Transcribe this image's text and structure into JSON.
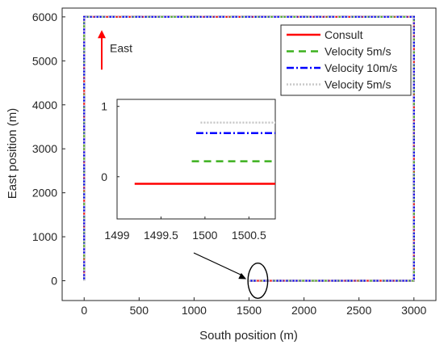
{
  "chart_data": {
    "type": "line",
    "xlabel": "South position (m)",
    "ylabel": "East position (m)",
    "xlim": [
      -200,
      3200
    ],
    "ylim": [
      -450,
      6200
    ],
    "xticks": [
      0,
      500,
      1000,
      1500,
      2000,
      2500,
      3000
    ],
    "yticks": [
      0,
      1000,
      2000,
      3000,
      4000,
      5000,
      6000
    ],
    "grid": false,
    "legend_position": "top-right",
    "series": [
      {
        "name": "Consult",
        "color": "#ff0000",
        "style": "solid",
        "x": [
          1500,
          1500,
          3000,
          3000,
          0,
          0
        ],
        "y": [
          0,
          0,
          0,
          6000,
          6000,
          0
        ]
      },
      {
        "name": "Velocity 5m/s",
        "color": "#3cb11e",
        "style": "dashed",
        "x": [
          1500,
          3000,
          3000,
          0,
          0
        ],
        "y": [
          0,
          0,
          6000,
          6000,
          0
        ]
      },
      {
        "name": "Velocity 10m/s",
        "color": "#0000ff",
        "style": "dashdot",
        "x": [
          1500,
          3000,
          3000,
          0,
          0
        ],
        "y": [
          0,
          0,
          6000,
          6000,
          0
        ]
      },
      {
        "name": "Velocity 5m/s",
        "color": "#c8c8c8",
        "style": "dotted",
        "x": [
          1500,
          3000,
          3000,
          0,
          0
        ],
        "y": [
          0,
          0,
          6000,
          6000,
          0
        ]
      }
    ],
    "annotation": {
      "text": "East",
      "color": "#ff0000",
      "arrow_x": 160,
      "arrow_y": [
        4800,
        5700
      ]
    },
    "callout": {
      "ellipse_center": [
        1580,
        0
      ],
      "ellipse_radius": [
        90,
        400
      ]
    },
    "inset": {
      "xlim": [
        1499,
        1500.8
      ],
      "ylim": [
        -0.6,
        1.1
      ],
      "xticks": [
        1499,
        1499.5,
        1500,
        1500.5
      ],
      "ytick_labels": [
        "1",
        "0"
      ],
      "yticks": [
        1,
        0
      ],
      "series": [
        {
          "name": "Consult",
          "color": "#ff0000",
          "style": "solid",
          "x": [
            1499.2,
            1500.8
          ],
          "y": [
            -0.1,
            -0.1
          ]
        },
        {
          "name": "Velocity 5m/s",
          "color": "#3cb11e",
          "style": "dashed",
          "x": [
            1499.85,
            1500.8
          ],
          "y": [
            0.22,
            0.22
          ]
        },
        {
          "name": "Velocity 10m/s",
          "color": "#0000ff",
          "style": "dashdot",
          "x": [
            1499.9,
            1500.8
          ],
          "y": [
            0.62,
            0.62
          ]
        },
        {
          "name": "Velocity 5m/s",
          "color": "#c8c8c8",
          "style": "dotted",
          "x": [
            1499.95,
            1500.8
          ],
          "y": [
            0.77,
            0.77
          ]
        }
      ]
    }
  }
}
